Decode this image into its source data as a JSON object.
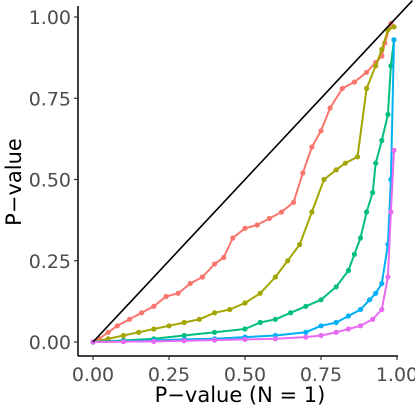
{
  "chart_data": {
    "type": "line",
    "xlabel": "P−value (N = 1)",
    "ylabel": "P−value",
    "xlim": [
      0,
      1
    ],
    "ylim": [
      0,
      1
    ],
    "xticks": [
      0,
      0.25,
      0.5,
      0.75,
      1.0
    ],
    "yticks": [
      0,
      0.25,
      0.5,
      0.75,
      1.0
    ],
    "xtick_labels": [
      "0.00",
      "0.25",
      "0.50",
      "0.75",
      "1.00"
    ],
    "ytick_labels": [
      "0.00",
      "0.25",
      "0.50",
      "0.75",
      "1.00"
    ],
    "grid": false,
    "legend": "none",
    "reference_line": {
      "from": [
        0,
        0
      ],
      "to": [
        1,
        1
      ],
      "color": "#000000"
    },
    "series": [
      {
        "color": "#F8766D",
        "points": [
          [
            0,
            0
          ],
          [
            0.02,
            0.01
          ],
          [
            0.05,
            0.03
          ],
          [
            0.08,
            0.05
          ],
          [
            0.12,
            0.07
          ],
          [
            0.16,
            0.09
          ],
          [
            0.2,
            0.11
          ],
          [
            0.24,
            0.14
          ],
          [
            0.28,
            0.15
          ],
          [
            0.32,
            0.18
          ],
          [
            0.36,
            0.2
          ],
          [
            0.4,
            0.24
          ],
          [
            0.43,
            0.26
          ],
          [
            0.46,
            0.32
          ],
          [
            0.5,
            0.35
          ],
          [
            0.54,
            0.36
          ],
          [
            0.58,
            0.38
          ],
          [
            0.62,
            0.4
          ],
          [
            0.66,
            0.43
          ],
          [
            0.69,
            0.52
          ],
          [
            0.72,
            0.6
          ],
          [
            0.75,
            0.65
          ],
          [
            0.78,
            0.72
          ],
          [
            0.82,
            0.78
          ],
          [
            0.86,
            0.8
          ],
          [
            0.9,
            0.83
          ],
          [
            0.93,
            0.86
          ],
          [
            0.95,
            0.88
          ],
          [
            0.96,
            0.92
          ],
          [
            0.98,
            0.98
          ]
        ]
      },
      {
        "color": "#A3A500",
        "points": [
          [
            0,
            0
          ],
          [
            0.05,
            0.01
          ],
          [
            0.1,
            0.02
          ],
          [
            0.15,
            0.03
          ],
          [
            0.2,
            0.04
          ],
          [
            0.25,
            0.05
          ],
          [
            0.3,
            0.06
          ],
          [
            0.35,
            0.07
          ],
          [
            0.4,
            0.09
          ],
          [
            0.45,
            0.1
          ],
          [
            0.5,
            0.12
          ],
          [
            0.55,
            0.15
          ],
          [
            0.6,
            0.2
          ],
          [
            0.64,
            0.25
          ],
          [
            0.68,
            0.3
          ],
          [
            0.72,
            0.4
          ],
          [
            0.76,
            0.5
          ],
          [
            0.8,
            0.53
          ],
          [
            0.83,
            0.55
          ],
          [
            0.87,
            0.57
          ],
          [
            0.9,
            0.78
          ],
          [
            0.93,
            0.85
          ],
          [
            0.95,
            0.9
          ],
          [
            0.97,
            0.96
          ],
          [
            0.99,
            0.97
          ]
        ]
      },
      {
        "color": "#00BF7D",
        "points": [
          [
            0,
            0
          ],
          [
            0.1,
            0.005
          ],
          [
            0.2,
            0.01
          ],
          [
            0.3,
            0.02
          ],
          [
            0.4,
            0.03
          ],
          [
            0.5,
            0.04
          ],
          [
            0.55,
            0.06
          ],
          [
            0.6,
            0.07
          ],
          [
            0.65,
            0.09
          ],
          [
            0.7,
            0.11
          ],
          [
            0.75,
            0.13
          ],
          [
            0.8,
            0.17
          ],
          [
            0.84,
            0.22
          ],
          [
            0.86,
            0.27
          ],
          [
            0.88,
            0.32
          ],
          [
            0.9,
            0.4
          ],
          [
            0.92,
            0.46
          ],
          [
            0.93,
            0.55
          ],
          [
            0.95,
            0.62
          ],
          [
            0.97,
            0.7
          ],
          [
            0.98,
            0.85
          ],
          [
            0.99,
            0.93
          ]
        ]
      },
      {
        "color": "#00B0F6",
        "points": [
          [
            0,
            0
          ],
          [
            0.1,
            0.002
          ],
          [
            0.2,
            0.005
          ],
          [
            0.3,
            0.008
          ],
          [
            0.4,
            0.01
          ],
          [
            0.5,
            0.015
          ],
          [
            0.6,
            0.02
          ],
          [
            0.7,
            0.03
          ],
          [
            0.75,
            0.05
          ],
          [
            0.8,
            0.06
          ],
          [
            0.84,
            0.08
          ],
          [
            0.88,
            0.1
          ],
          [
            0.91,
            0.13
          ],
          [
            0.93,
            0.15
          ],
          [
            0.95,
            0.18
          ],
          [
            0.97,
            0.3
          ],
          [
            0.98,
            0.5
          ],
          [
            0.99,
            0.93
          ]
        ]
      },
      {
        "color": "#E76BF3",
        "points": [
          [
            0,
            0
          ],
          [
            0.1,
            0.001
          ],
          [
            0.2,
            0.002
          ],
          [
            0.3,
            0.004
          ],
          [
            0.4,
            0.006
          ],
          [
            0.5,
            0.008
          ],
          [
            0.6,
            0.01
          ],
          [
            0.7,
            0.015
          ],
          [
            0.75,
            0.02
          ],
          [
            0.8,
            0.03
          ],
          [
            0.84,
            0.04
          ],
          [
            0.88,
            0.05
          ],
          [
            0.92,
            0.07
          ],
          [
            0.95,
            0.1
          ],
          [
            0.97,
            0.2
          ],
          [
            0.98,
            0.4
          ],
          [
            0.99,
            0.59
          ]
        ]
      }
    ]
  }
}
